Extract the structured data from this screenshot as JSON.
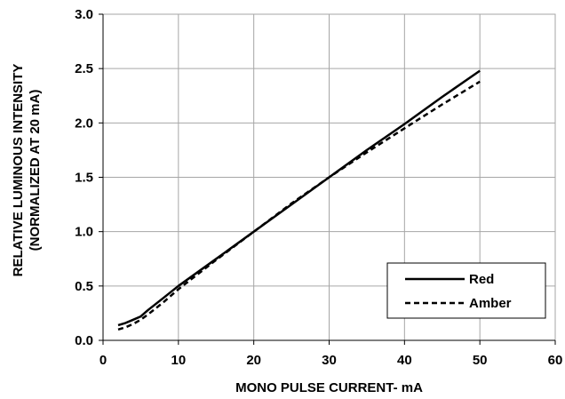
{
  "chart_data": {
    "type": "line",
    "title": "",
    "xlabel": "MONO PULSE CURRENT- mA",
    "ylabel_lines": [
      "RELATIVE LUMINOUS INTENSITY",
      "(NORMALIZED AT 20 mA)"
    ],
    "xlim": [
      0,
      60
    ],
    "ylim": [
      0,
      3.0
    ],
    "x_ticks": [
      0,
      10,
      20,
      30,
      40,
      50,
      60
    ],
    "x_tick_labels": [
      "0",
      "10",
      "20",
      "30",
      "40",
      "50",
      "60"
    ],
    "y_ticks": [
      0,
      0.5,
      1.0,
      1.5,
      2.0,
      2.5,
      3.0
    ],
    "y_tick_labels": [
      "0.0",
      "0.5",
      "1.0",
      "1.5",
      "2.0",
      "2.5",
      "3.0"
    ],
    "grid": true,
    "legend_position": "bottom-right",
    "series": [
      {
        "name": "Red",
        "style": "solid",
        "color": "#000000",
        "x": [
          2,
          3,
          4,
          5,
          6,
          8,
          10,
          15,
          20,
          25,
          30,
          35,
          40,
          45,
          50
        ],
        "y": [
          0.14,
          0.16,
          0.19,
          0.22,
          0.28,
          0.39,
          0.5,
          0.75,
          1.0,
          1.25,
          1.5,
          1.75,
          1.99,
          2.24,
          2.48
        ]
      },
      {
        "name": "Amber",
        "style": "dashed",
        "color": "#000000",
        "x": [
          2,
          3,
          4,
          5,
          6,
          8,
          10,
          15,
          20,
          25,
          30,
          35,
          40,
          45,
          50
        ],
        "y": [
          0.1,
          0.12,
          0.15,
          0.19,
          0.24,
          0.35,
          0.47,
          0.74,
          1.0,
          1.26,
          1.5,
          1.73,
          1.95,
          2.17,
          2.38
        ]
      }
    ]
  }
}
